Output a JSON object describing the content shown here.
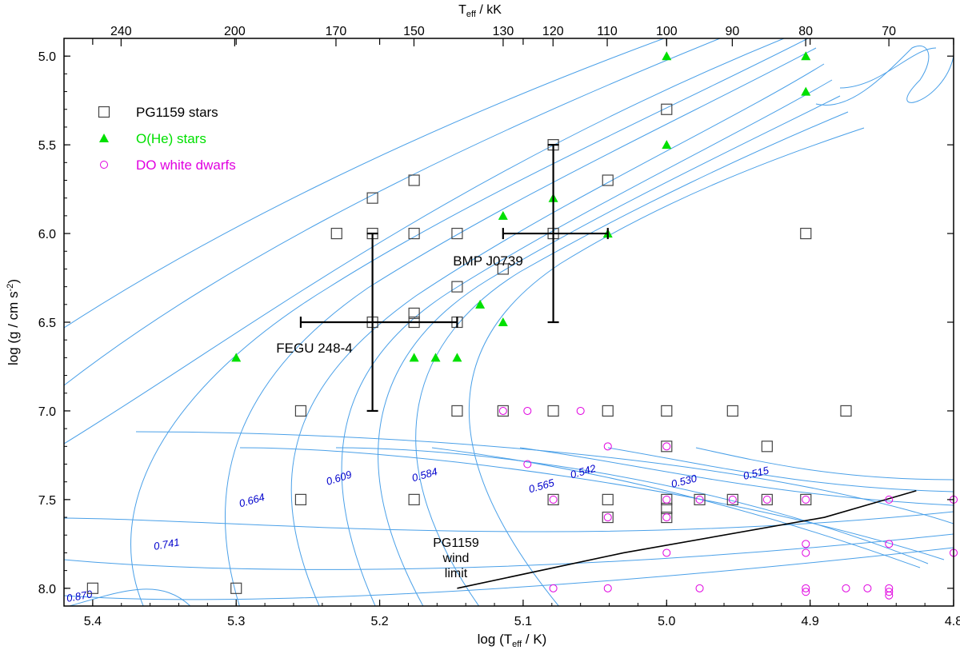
{
  "chart_data": {
    "type": "scatter",
    "xlabel": "log (T",
    "xlabel_sub": "eff",
    "xlabel_tail": " / K)",
    "ylabel": "log (g / cm s",
    "ylabel_sup": "-2",
    "ylabel_tail": ")",
    "top_label": "T",
    "top_label_sub": "eff",
    "top_label_tail": "  / kK",
    "xlim": [
      5.42,
      4.8
    ],
    "ylim": [
      8.1,
      4.9
    ],
    "x_ticks": [
      "5.4",
      "5.3",
      "5.2",
      "5.1",
      "5.0",
      "4.9",
      "4.8"
    ],
    "y_ticks": [
      "5.0",
      "5.5",
      "6.0",
      "6.5",
      "7.0",
      "7.5",
      "8.0"
    ],
    "top_ticks": [
      "240",
      "200",
      "170",
      "150",
      "130",
      "120",
      "110",
      "100",
      "90",
      "80",
      "70"
    ],
    "legend": [
      {
        "label": "PG1159 stars",
        "symbol": "square",
        "color": "#444444"
      },
      {
        "label": "O(He) stars",
        "symbol": "triangle",
        "color": "#00e000"
      },
      {
        "label": "DO white dwarfs",
        "symbol": "circle",
        "color": "#e000e0"
      }
    ],
    "series": [
      {
        "name": "PG1159 stars",
        "points": [
          [
            5.4,
            8.0
          ],
          [
            5.3,
            8.0
          ],
          [
            5.255,
            7.0
          ],
          [
            5.255,
            7.5
          ],
          [
            5.23,
            6.0
          ],
          [
            5.205,
            5.8
          ],
          [
            5.205,
            6.0
          ],
          [
            5.205,
            6.5
          ],
          [
            5.176,
            5.7
          ],
          [
            5.176,
            6.0
          ],
          [
            5.176,
            6.45
          ],
          [
            5.176,
            6.5
          ],
          [
            5.176,
            7.5
          ],
          [
            5.146,
            6.0
          ],
          [
            5.146,
            6.3
          ],
          [
            5.146,
            6.5
          ],
          [
            5.146,
            7.0
          ],
          [
            5.114,
            6.2
          ],
          [
            5.114,
            7.0
          ],
          [
            5.079,
            5.5
          ],
          [
            5.079,
            6.0
          ],
          [
            5.079,
            7.0
          ],
          [
            5.079,
            7.5
          ],
          [
            5.041,
            5.7
          ],
          [
            5.041,
            7.0
          ],
          [
            5.041,
            7.5
          ],
          [
            5.041,
            7.6
          ],
          [
            5.0,
            5.3
          ],
          [
            5.0,
            7.0
          ],
          [
            5.0,
            7.2
          ],
          [
            5.0,
            7.5
          ],
          [
            5.0,
            7.55
          ],
          [
            5.0,
            7.6
          ],
          [
            4.977,
            7.5
          ],
          [
            4.954,
            7.0
          ],
          [
            4.954,
            7.5
          ],
          [
            4.93,
            7.2
          ],
          [
            4.93,
            7.5
          ],
          [
            4.903,
            6.0
          ],
          [
            4.903,
            7.5
          ],
          [
            4.875,
            7.0
          ]
        ]
      },
      {
        "name": "O(He) stars",
        "points": [
          [
            5.3,
            6.7
          ],
          [
            5.176,
            6.7
          ],
          [
            5.161,
            6.7
          ],
          [
            5.146,
            6.7
          ],
          [
            5.13,
            6.4
          ],
          [
            5.114,
            5.9
          ],
          [
            5.114,
            6.5
          ],
          [
            5.079,
            5.8
          ],
          [
            5.041,
            6.0
          ],
          [
            5.0,
            5.0
          ],
          [
            5.0,
            5.5
          ],
          [
            4.903,
            5.0
          ],
          [
            4.903,
            5.2
          ]
        ]
      },
      {
        "name": "DO white dwarfs",
        "points": [
          [
            5.114,
            7.0
          ],
          [
            5.097,
            7.0
          ],
          [
            5.06,
            7.0
          ],
          [
            5.097,
            7.3
          ],
          [
            5.041,
            7.2
          ],
          [
            5.0,
            7.2
          ],
          [
            5.079,
            7.5
          ],
          [
            5.0,
            7.5
          ],
          [
            4.977,
            7.5
          ],
          [
            4.954,
            7.5
          ],
          [
            4.93,
            7.5
          ],
          [
            4.903,
            7.5
          ],
          [
            4.845,
            7.5
          ],
          [
            4.8,
            7.5
          ],
          [
            5.041,
            7.6
          ],
          [
            5.0,
            7.6
          ],
          [
            5.0,
            7.8
          ],
          [
            4.903,
            7.75
          ],
          [
            4.903,
            7.8
          ],
          [
            4.845,
            7.75
          ],
          [
            4.8,
            7.8
          ],
          [
            5.079,
            8.0
          ],
          [
            5.041,
            8.0
          ],
          [
            4.977,
            8.0
          ],
          [
            4.903,
            8.0
          ],
          [
            4.903,
            8.02
          ],
          [
            4.875,
            8.0
          ],
          [
            4.86,
            8.0
          ],
          [
            4.845,
            8.0
          ],
          [
            4.845,
            8.02
          ],
          [
            4.845,
            8.04
          ]
        ]
      }
    ],
    "error_bars": [
      {
        "label": "FEGU 248-4",
        "x": 5.205,
        "y": 6.5,
        "x_range": [
          5.255,
          5.146
        ],
        "y_range": [
          6.0,
          7.0
        ]
      },
      {
        "label": "BMP J0739",
        "x": 5.079,
        "y": 6.0,
        "x_range": [
          5.114,
          5.041
        ],
        "y_range": [
          5.5,
          6.5
        ]
      }
    ],
    "wind_limit": {
      "label_lines": [
        "PG1159",
        "wind",
        "limit"
      ],
      "points": [
        [
          5.146,
          8.0
        ],
        [
          5.03,
          7.8
        ],
        [
          4.89,
          7.6
        ],
        [
          4.826,
          7.45
        ]
      ]
    },
    "track_labels": [
      "0.870",
      "0.741",
      "0.664",
      "0.609",
      "0.584",
      "0.565",
      "0.542",
      "0.530",
      "0.515"
    ],
    "colors": {
      "track": "#4aa0e8",
      "track_label": "#0000cc",
      "frame": "#000000"
    }
  }
}
